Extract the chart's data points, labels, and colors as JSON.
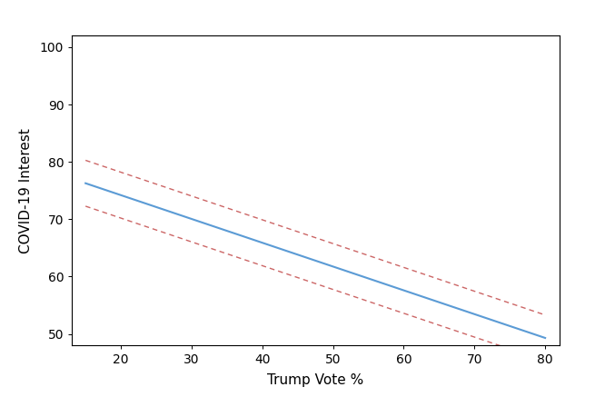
{
  "x_start": 15,
  "x_end": 80,
  "xlim": [
    13,
    82
  ],
  "ylim": [
    48,
    102
  ],
  "xticks": [
    20,
    30,
    40,
    50,
    60,
    70,
    80
  ],
  "yticks": [
    50,
    60,
    70,
    80,
    90,
    100
  ],
  "xlabel": "Trump Vote %",
  "ylabel": "COVID-19 Interest",
  "main_line_color": "#5B9BD5",
  "ci_line_color": "#CC6666",
  "main_intercept": 82.5,
  "main_slope": -0.415,
  "upper_intercept": 86.5,
  "upper_slope": -0.415,
  "lower_intercept": 78.5,
  "lower_slope": -0.415,
  "bg_color": "#FFFFFF",
  "axis_color": "#000000",
  "main_linewidth": 1.5,
  "ci_linewidth": 1.0,
  "xlabel_fontsize": 11,
  "ylabel_fontsize": 11,
  "tick_fontsize": 10
}
